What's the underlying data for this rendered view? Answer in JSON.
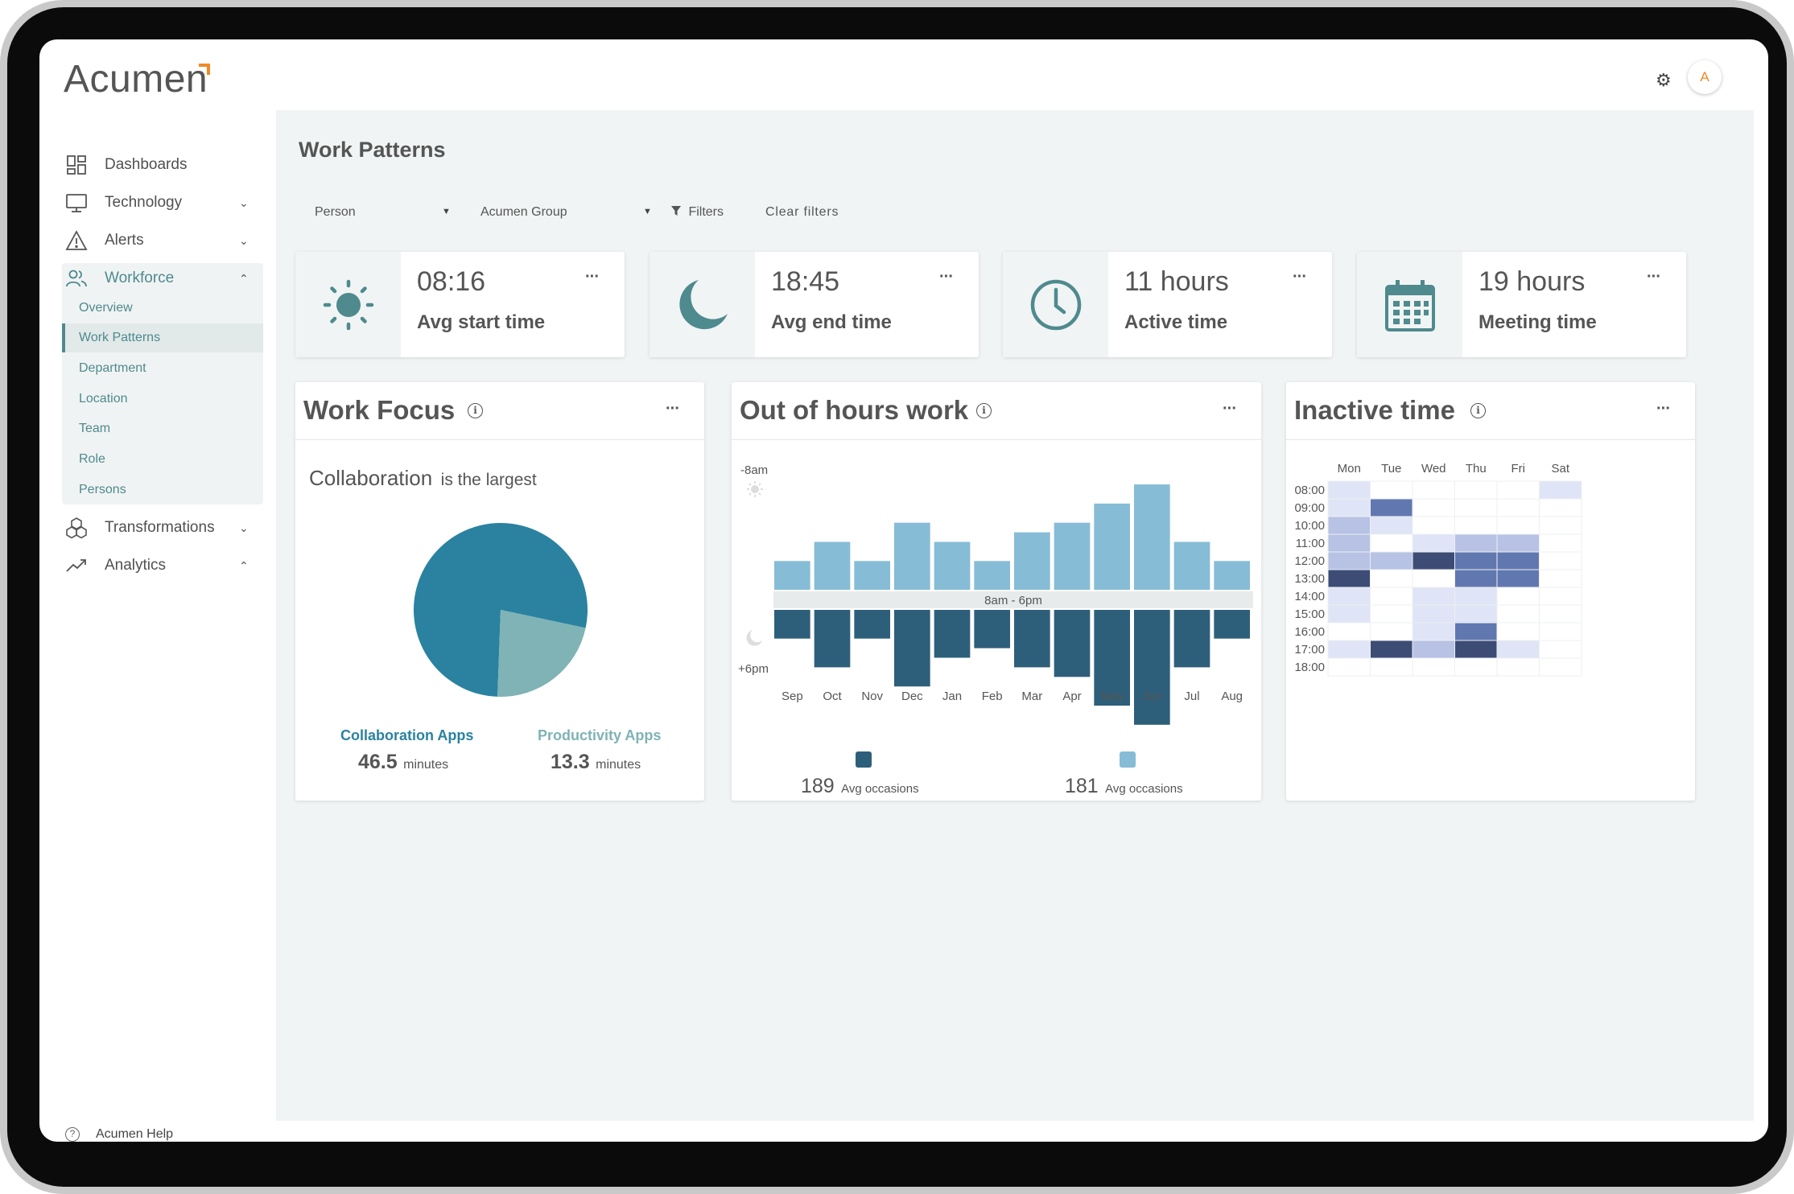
{
  "app": {
    "logo": "Acumen",
    "avatar_initial": "A"
  },
  "sidebar": {
    "items": [
      {
        "label": "Dashboards",
        "icon": "dashboard-icon"
      },
      {
        "label": "Technology",
        "icon": "monitor-icon",
        "chevron": "down"
      },
      {
        "label": "Alerts",
        "icon": "warning-icon",
        "chevron": "down"
      },
      {
        "label": "Workforce",
        "icon": "people-icon",
        "chevron": "up",
        "active": true
      },
      {
        "label": "Transformations",
        "icon": "cubes-icon",
        "chevron": "down"
      },
      {
        "label": "Analytics",
        "icon": "trend-icon",
        "chevron": "up"
      }
    ],
    "workforce_sub": [
      "Overview",
      "Work Patterns",
      "Department",
      "Location",
      "Team",
      "Role",
      "Persons"
    ],
    "selected_sub": "Work Patterns",
    "help_label": "Acumen Help"
  },
  "page": {
    "title": "Work Patterns",
    "filters": {
      "person": "Person",
      "group": "Acumen Group",
      "filters_label": "Filters",
      "clear_label": "Clear filters"
    }
  },
  "stats": [
    {
      "value": "08:16",
      "label": "Avg start time",
      "icon": "sun-icon"
    },
    {
      "value": "18:45",
      "label": "Avg end time",
      "icon": "moon-icon"
    },
    {
      "value": "11 hours",
      "label": "Active time",
      "icon": "clock-icon"
    },
    {
      "value": "19 hours",
      "label": "Meeting time",
      "icon": "calendar-icon"
    }
  ],
  "work_focus": {
    "title": "Work Focus",
    "headline_main": "Collaboration",
    "headline_rest": "is the largest",
    "legend": [
      {
        "label": "Collaboration Apps",
        "value": "46.5",
        "unit": "minutes",
        "color": "#2a82a0"
      },
      {
        "label": "Productivity Apps",
        "value": "13.3",
        "unit": "minutes",
        "color": "#7fb3b5"
      }
    ]
  },
  "out_of_hours": {
    "title": "Out of hours work",
    "top_label": "-8am",
    "bottom_label": "+6pm",
    "band_label": "8am - 6pm",
    "summary": [
      {
        "value": "189",
        "label": "Avg occasions",
        "color": "#2e5f7a"
      },
      {
        "value": "181",
        "label": "Avg occasions",
        "color": "#86bcd6"
      }
    ]
  },
  "inactive_time": {
    "title": "Inactive time",
    "days": [
      "Mon",
      "Tue",
      "Wed",
      "Thu",
      "Fri",
      "Sat"
    ],
    "hours": [
      "08:00",
      "09:00",
      "10:00",
      "11:00",
      "12:00",
      "13:00",
      "14:00",
      "15:00",
      "16:00",
      "17:00",
      "18:00"
    ],
    "levels": [
      [
        1,
        0,
        0,
        0,
        0,
        1
      ],
      [
        1,
        3,
        0,
        0,
        0,
        0
      ],
      [
        2,
        1,
        0,
        0,
        0,
        0
      ],
      [
        2,
        0,
        1,
        2,
        2,
        0
      ],
      [
        2,
        2,
        4,
        3,
        3,
        0
      ],
      [
        4,
        0,
        0,
        3,
        3,
        0
      ],
      [
        1,
        0,
        1,
        1,
        0,
        0
      ],
      [
        1,
        0,
        1,
        1,
        0,
        0
      ],
      [
        0,
        0,
        1,
        3,
        0,
        0
      ],
      [
        1,
        4,
        2,
        4,
        1,
        0
      ],
      [
        0,
        0,
        0,
        0,
        0,
        0
      ]
    ],
    "level_colors": [
      "#ffffff",
      "#dfe4f6",
      "#b7c2e4",
      "#6177b0",
      "#3c4c75"
    ]
  },
  "chart_data": [
    {
      "type": "pie",
      "title": "Work Focus",
      "categories": [
        "Collaboration Apps",
        "Productivity Apps"
      ],
      "values": [
        46.5,
        13.3
      ],
      "unit": "minutes",
      "colors": [
        "#2a82a0",
        "#7fb3b5"
      ]
    },
    {
      "type": "bar",
      "title": "Out of hours work",
      "categories": [
        "Sep",
        "Oct",
        "Nov",
        "Dec",
        "Jan",
        "Feb",
        "Mar",
        "Apr",
        "May",
        "Jun",
        "Jul",
        "Aug"
      ],
      "series": [
        {
          "values": [
            3,
            5,
            3,
            7,
            5,
            3,
            6,
            7,
            9,
            11,
            5,
            3
          ],
          "color": "#86bcd6"
        },
        {
          "values": [
            3,
            6,
            3,
            8,
            5,
            4,
            6,
            7,
            10,
            12,
            6,
            3
          ],
          "color": "#2e5f7a"
        }
      ],
      "xlabel": "",
      "ylabel": ""
    }
  ]
}
